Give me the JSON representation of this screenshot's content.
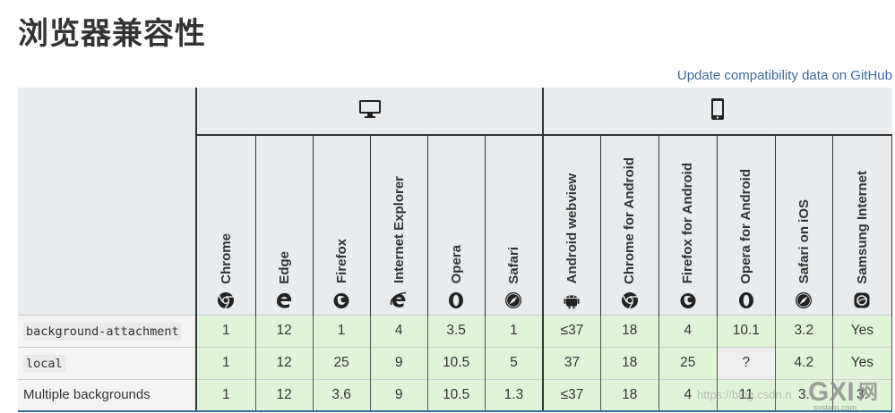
{
  "title": "浏览器兼容性",
  "update_link": "Update compatibility data on GitHub",
  "platforms": [
    {
      "name": "desktop",
      "icon": "desktop-icon"
    },
    {
      "name": "mobile",
      "icon": "mobile-icon"
    }
  ],
  "browsers": [
    {
      "label": "Chrome",
      "icon": "chrome-icon"
    },
    {
      "label": "Edge",
      "icon": "edge-icon"
    },
    {
      "label": "Firefox",
      "icon": "firefox-icon"
    },
    {
      "label": "Internet Explorer",
      "icon": "ie-icon"
    },
    {
      "label": "Opera",
      "icon": "opera-icon"
    },
    {
      "label": "Safari",
      "icon": "safari-icon"
    },
    {
      "label": "Android webview",
      "icon": "android-icon"
    },
    {
      "label": "Chrome for Android",
      "icon": "chrome-icon"
    },
    {
      "label": "Firefox for Android",
      "icon": "firefox-icon"
    },
    {
      "label": "Opera for Android",
      "icon": "opera-icon"
    },
    {
      "label": "Safari on iOS",
      "icon": "safari-icon"
    },
    {
      "label": "Samsung Internet",
      "icon": "samsung-icon"
    }
  ],
  "rows": [
    {
      "feature": "background-attachment",
      "code": true,
      "values": [
        "1",
        "12",
        "1",
        "4",
        "3.5",
        "1",
        "≤37",
        "18",
        "4",
        "10.1",
        "3.2",
        "Yes"
      ]
    },
    {
      "feature": "local",
      "code": true,
      "values": [
        "1",
        "12",
        "25",
        "9",
        "10.5",
        "5",
        "37",
        "18",
        "25",
        "?",
        "4.2",
        "Yes"
      ]
    },
    {
      "feature": "Multiple backgrounds",
      "code": false,
      "values": [
        "1",
        "12",
        "3.6",
        "9",
        "10.5",
        "1.3",
        "≤37",
        "18",
        "4",
        "11",
        "3.",
        "3."
      ]
    }
  ],
  "colors": {
    "supported": "#e0f5d8",
    "unknown": "#eeeeee",
    "header_bg": "#e8ecef",
    "link": "#3d6b9a"
  },
  "watermark": {
    "url_text": "https://blog.csdn.n",
    "logo_text": "GXI网",
    "logo_sub": "system.com"
  }
}
